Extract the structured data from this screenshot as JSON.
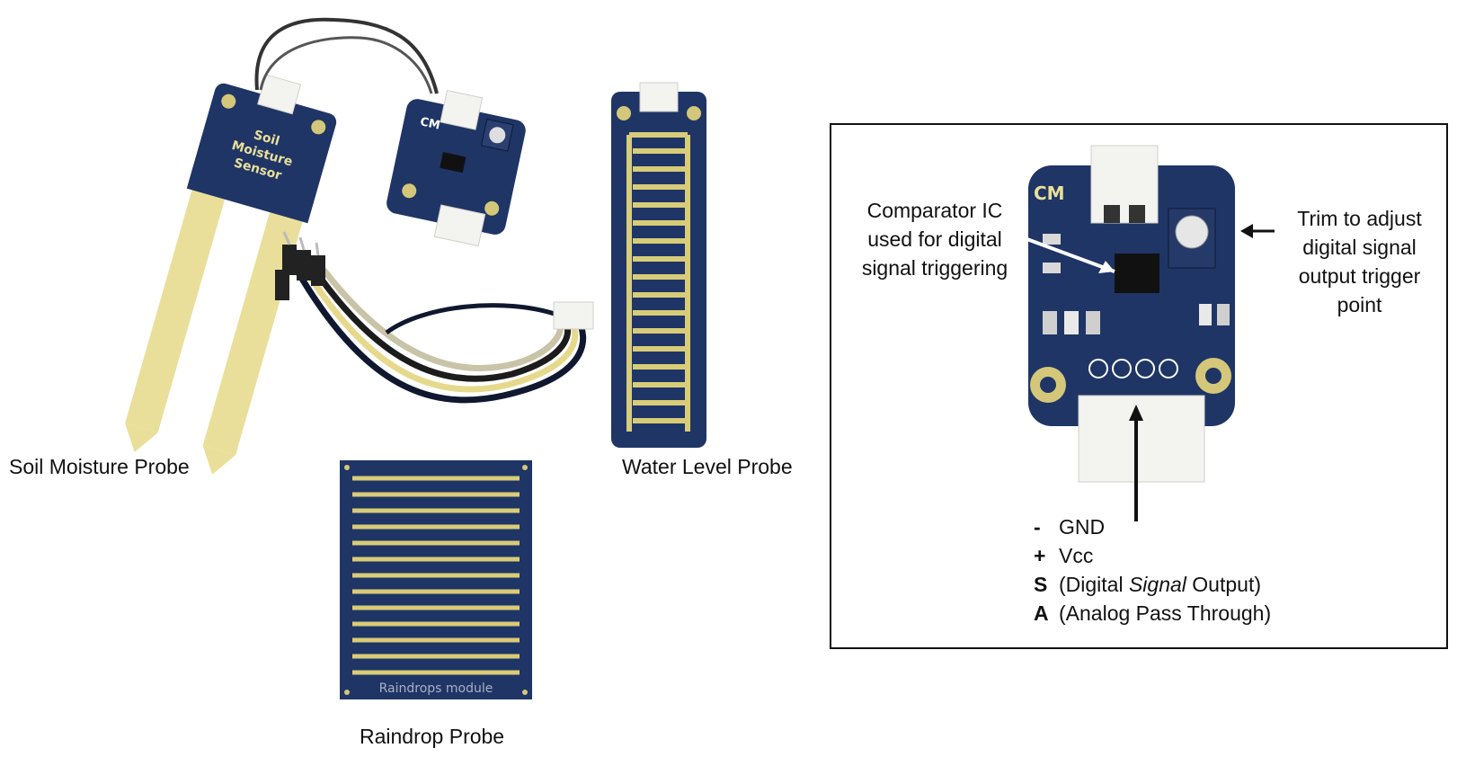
{
  "colors": {
    "pcb_blue": "#1f3566",
    "pcb_dark": "#142446",
    "gold": "#e9df9a",
    "trace_gold": "#d8cc78",
    "connector_white": "#f3f3f0",
    "background": "#ffffff"
  },
  "captions": {
    "soil": "Soil Moisture Probe",
    "water": "Water Level Probe",
    "raindrop": "Raindrop Probe"
  },
  "board_labels": {
    "soil_line1": "Soil",
    "soil_line2": "Moisture",
    "soil_line3": "Sensor",
    "cm": "CM",
    "rain_module": "Raindrops module"
  },
  "callouts": {
    "comparator": [
      "Comparator IC",
      "used for digital",
      "signal triggering"
    ],
    "trim": [
      "Trim to adjust",
      "digital signal",
      "output trigger",
      "point"
    ]
  },
  "pinout": [
    {
      "symbol": "-",
      "desc_pre": "GND",
      "desc_em": "",
      "desc_post": ""
    },
    {
      "symbol": "+",
      "desc_pre": "Vcc",
      "desc_em": "",
      "desc_post": ""
    },
    {
      "symbol": "S",
      "desc_pre": "(Digital ",
      "desc_em": "Signal",
      "desc_post": " Output)"
    },
    {
      "symbol": "A",
      "desc_pre": "(Analog Pass Through)",
      "desc_em": "",
      "desc_post": ""
    }
  ]
}
